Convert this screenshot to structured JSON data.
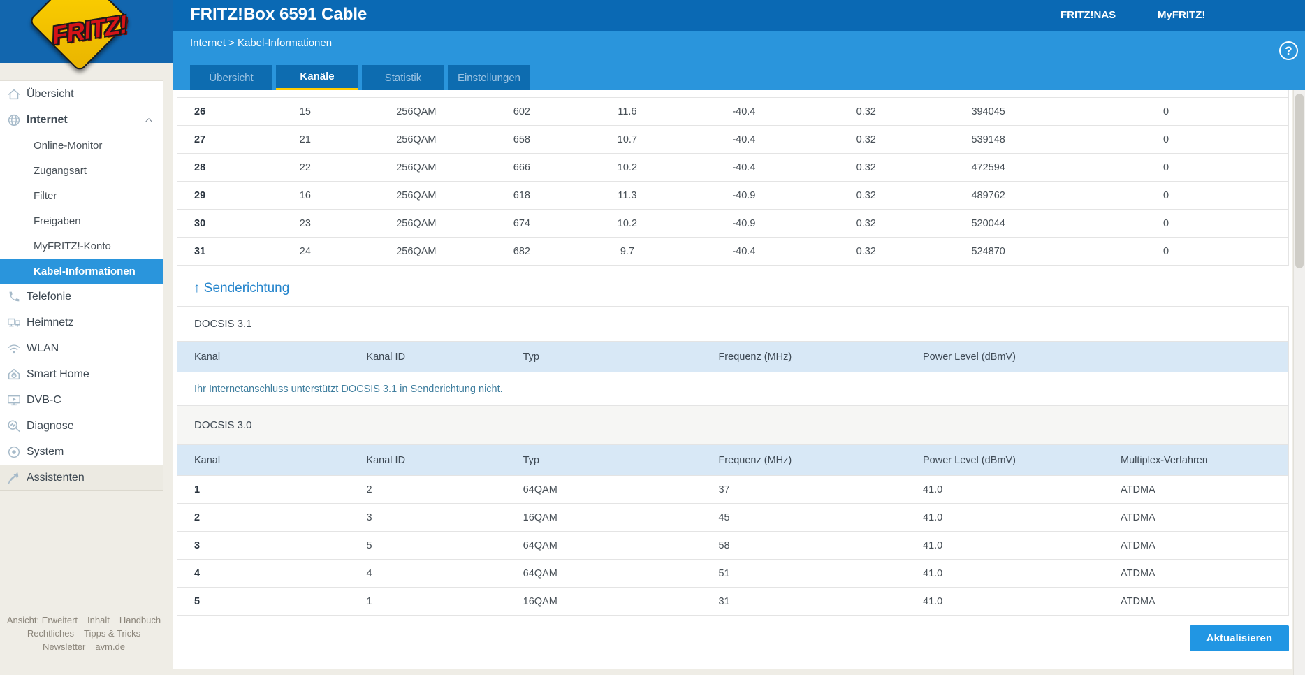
{
  "logo_text": "FRITZ!",
  "header": {
    "title": "FRITZ!Box 6591 Cable",
    "nas_link": "FRITZ!NAS",
    "myfritz_link": "MyFRITZ!"
  },
  "breadcrumb": {
    "parent": "Internet",
    "separator": ">",
    "current": "Kabel-Informationen"
  },
  "help_label": "?",
  "tabs": {
    "uebersicht": "Übersicht",
    "kanaele": "Kanäle",
    "statistik": "Statistik",
    "einstellungen": "Einstellungen"
  },
  "sidebar": {
    "uebersicht": "Übersicht",
    "internet": "Internet",
    "online_monitor": "Online-Monitor",
    "zugangsart": "Zugangsart",
    "filter": "Filter",
    "freigaben": "Freigaben",
    "myfritz_konto": "MyFRITZ!-Konto",
    "kabel_informationen": "Kabel-Informationen",
    "telefonie": "Telefonie",
    "heimnetz": "Heimnetz",
    "wlan": "WLAN",
    "smart_home": "Smart Home",
    "dvbc": "DVB-C",
    "diagnose": "Diagnose",
    "system": "System",
    "assistenten": "Assistenten"
  },
  "side_footer": {
    "ansicht": "Ansicht: Erweitert",
    "inhalt": "Inhalt",
    "handbuch": "Handbuch",
    "rechtliches": "Rechtliches",
    "tipps": "Tipps & Tricks",
    "newsletter": "Newsletter",
    "avm": "avm.de"
  },
  "empfang_table": {
    "rows": [
      [
        "26",
        "15",
        "256QAM",
        "602",
        "11.6",
        "-40.4",
        "0.32",
        "394045",
        "0"
      ],
      [
        "27",
        "21",
        "256QAM",
        "658",
        "10.7",
        "-40.4",
        "0.32",
        "539148",
        "0"
      ],
      [
        "28",
        "22",
        "256QAM",
        "666",
        "10.2",
        "-40.4",
        "0.32",
        "472594",
        "0"
      ],
      [
        "29",
        "16",
        "256QAM",
        "618",
        "11.3",
        "-40.9",
        "0.32",
        "489762",
        "0"
      ],
      [
        "30",
        "23",
        "256QAM",
        "674",
        "10.2",
        "-40.9",
        "0.32",
        "520044",
        "0"
      ],
      [
        "31",
        "24",
        "256QAM",
        "682",
        "9.7",
        "-40.4",
        "0.32",
        "524870",
        "0"
      ]
    ]
  },
  "senderichtung": {
    "heading": "↑ Senderichtung",
    "docsis31_title": "DOCSIS 3.1",
    "docsis31_headers": [
      "Kanal",
      "Kanal ID",
      "Typ",
      "Frequenz (MHz)",
      "Power Level (dBmV)"
    ],
    "docsis31_message": "Ihr Internetanschluss unterstützt DOCSIS 3.1 in Senderichtung nicht.",
    "docsis30_title": "DOCSIS 3.0",
    "docsis30_headers": [
      "Kanal",
      "Kanal ID",
      "Typ",
      "Frequenz (MHz)",
      "Power Level (dBmV)",
      "Multiplex-Verfahren"
    ],
    "docsis30_rows": [
      [
        "1",
        "2",
        "64QAM",
        "37",
        "41.0",
        "ATDMA"
      ],
      [
        "2",
        "3",
        "16QAM",
        "45",
        "41.0",
        "ATDMA"
      ],
      [
        "3",
        "5",
        "64QAM",
        "58",
        "41.0",
        "ATDMA"
      ],
      [
        "4",
        "4",
        "64QAM",
        "51",
        "41.0",
        "ATDMA"
      ],
      [
        "5",
        "1",
        "16QAM",
        "31",
        "41.0",
        "ATDMA"
      ]
    ]
  },
  "refresh_label": "Aktualisieren",
  "colors": {
    "header_blue": "#0a69b4",
    "accent_blue": "#2a95dc",
    "tab_underline_yellow": "#ffcc00",
    "table_header_bg": "#d8e8f6",
    "logo_yellow": "#ffd400",
    "logo_red": "#d51317"
  }
}
